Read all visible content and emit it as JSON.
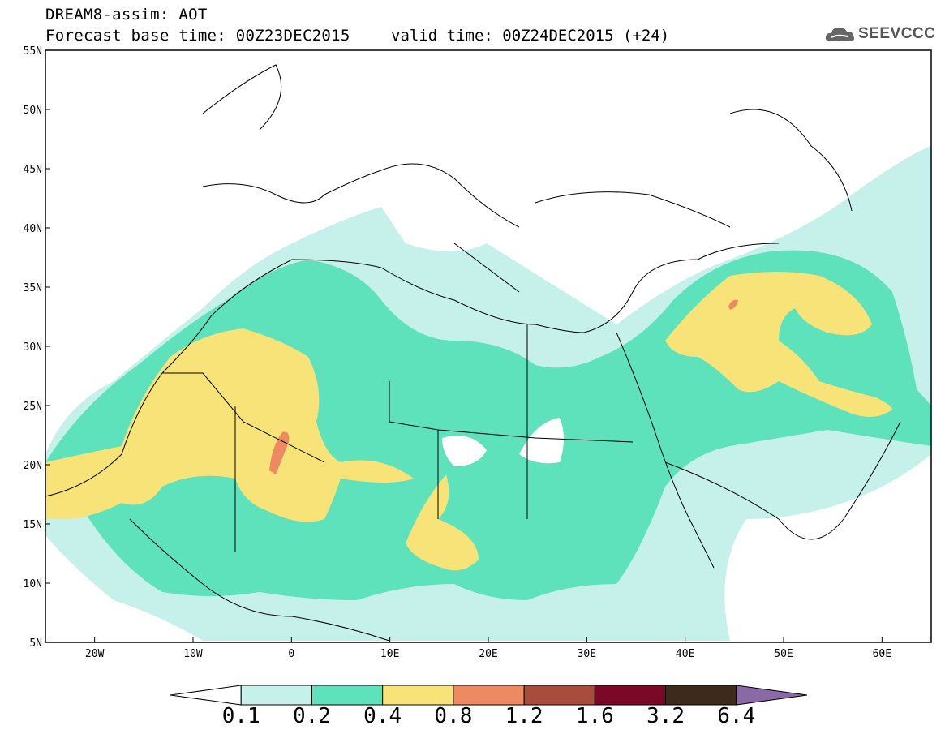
{
  "header": {
    "title": "DREAM8-assim: AOT",
    "forecast_base": "Forecast base time: 00Z23DEC2015",
    "valid_time": "valid time: 00Z24DEC2015 (+24)",
    "logo_text": "SEEVCCC"
  },
  "map": {
    "lon_range": [
      -25,
      65
    ],
    "lat_range": [
      5,
      55
    ],
    "lat_ticks": [
      "55N",
      "50N",
      "45N",
      "40N",
      "35N",
      "30N",
      "25N",
      "20N",
      "15N",
      "10N",
      "5N"
    ],
    "lon_ticks": [
      "20W",
      "10W",
      "0",
      "10E",
      "20E",
      "30E",
      "40E",
      "50E",
      "60E"
    ]
  },
  "colorbar": {
    "labels": [
      "0.1",
      "0.2",
      "0.4",
      "0.8",
      "1.2",
      "1.6",
      "3.2",
      "6.4"
    ],
    "colors": [
      "#ffffff",
      "#c6f0ea",
      "#5ee2bc",
      "#f7e378",
      "#ee8a62",
      "#a84c3e",
      "#7a0826",
      "#3d2a1a",
      "#8a6aa6"
    ]
  }
}
